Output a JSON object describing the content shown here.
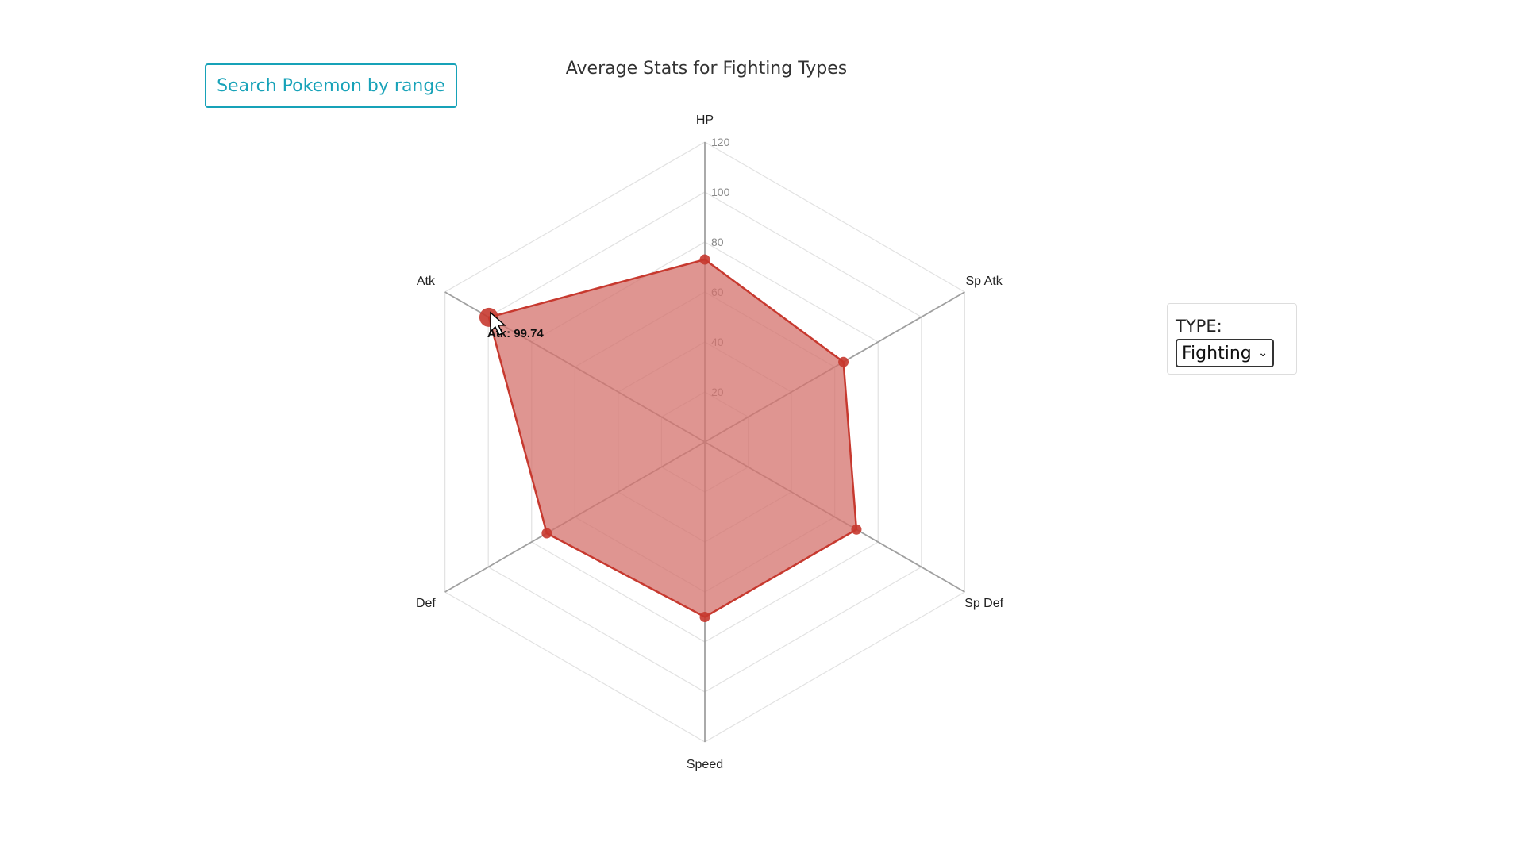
{
  "search_button": {
    "label": "Search Pokemon by range"
  },
  "filter": {
    "label": "TYPE:",
    "selected": "Fighting"
  },
  "colors": {
    "accent": "#17a2b8",
    "series_stroke": "#c7392f",
    "series_fill": "#d4726c"
  },
  "chart_data": {
    "type": "radar",
    "title": "Average Stats for Fighting Types",
    "axes": [
      "HP",
      "Sp Atk",
      "Sp Def",
      "Speed",
      "Def",
      "Atk"
    ],
    "series": [
      {
        "values": [
          73,
          64,
          70,
          70,
          73,
          99.74
        ]
      }
    ],
    "scale_max": 120,
    "ticks": [
      "20",
      "40",
      "60",
      "80",
      "100",
      "120"
    ],
    "grid": true,
    "tooltip": {
      "text": "Atk: 99.74",
      "axis": "Atk"
    }
  }
}
